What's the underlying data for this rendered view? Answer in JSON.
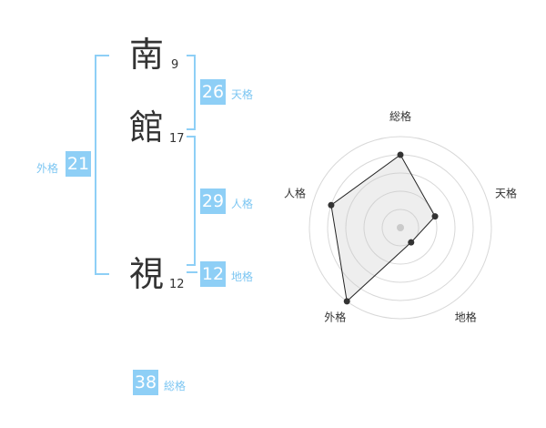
{
  "name": {
    "chars": [
      {
        "char": "南",
        "strokes": "9"
      },
      {
        "char": "館",
        "strokes": "17"
      },
      {
        "char": "視",
        "strokes": "12"
      }
    ]
  },
  "fortunes": {
    "tenkaku": {
      "value": "26",
      "label": "天格"
    },
    "jinkaku": {
      "value": "29",
      "label": "人格"
    },
    "chikaku": {
      "value": "12",
      "label": "地格"
    },
    "gaikaku": {
      "value": "21",
      "label": "外格"
    },
    "soukaku": {
      "value": "38",
      "label": "総格"
    }
  },
  "colors": {
    "accent": "#8ecff6",
    "label": "#7cc6f2"
  },
  "chart_data": {
    "type": "radar",
    "axes": [
      "総格",
      "天格",
      "地格",
      "外格",
      "人格"
    ],
    "values": [
      4,
      2,
      1,
      5,
      4
    ],
    "range": [
      0,
      5
    ],
    "rings": 5
  }
}
